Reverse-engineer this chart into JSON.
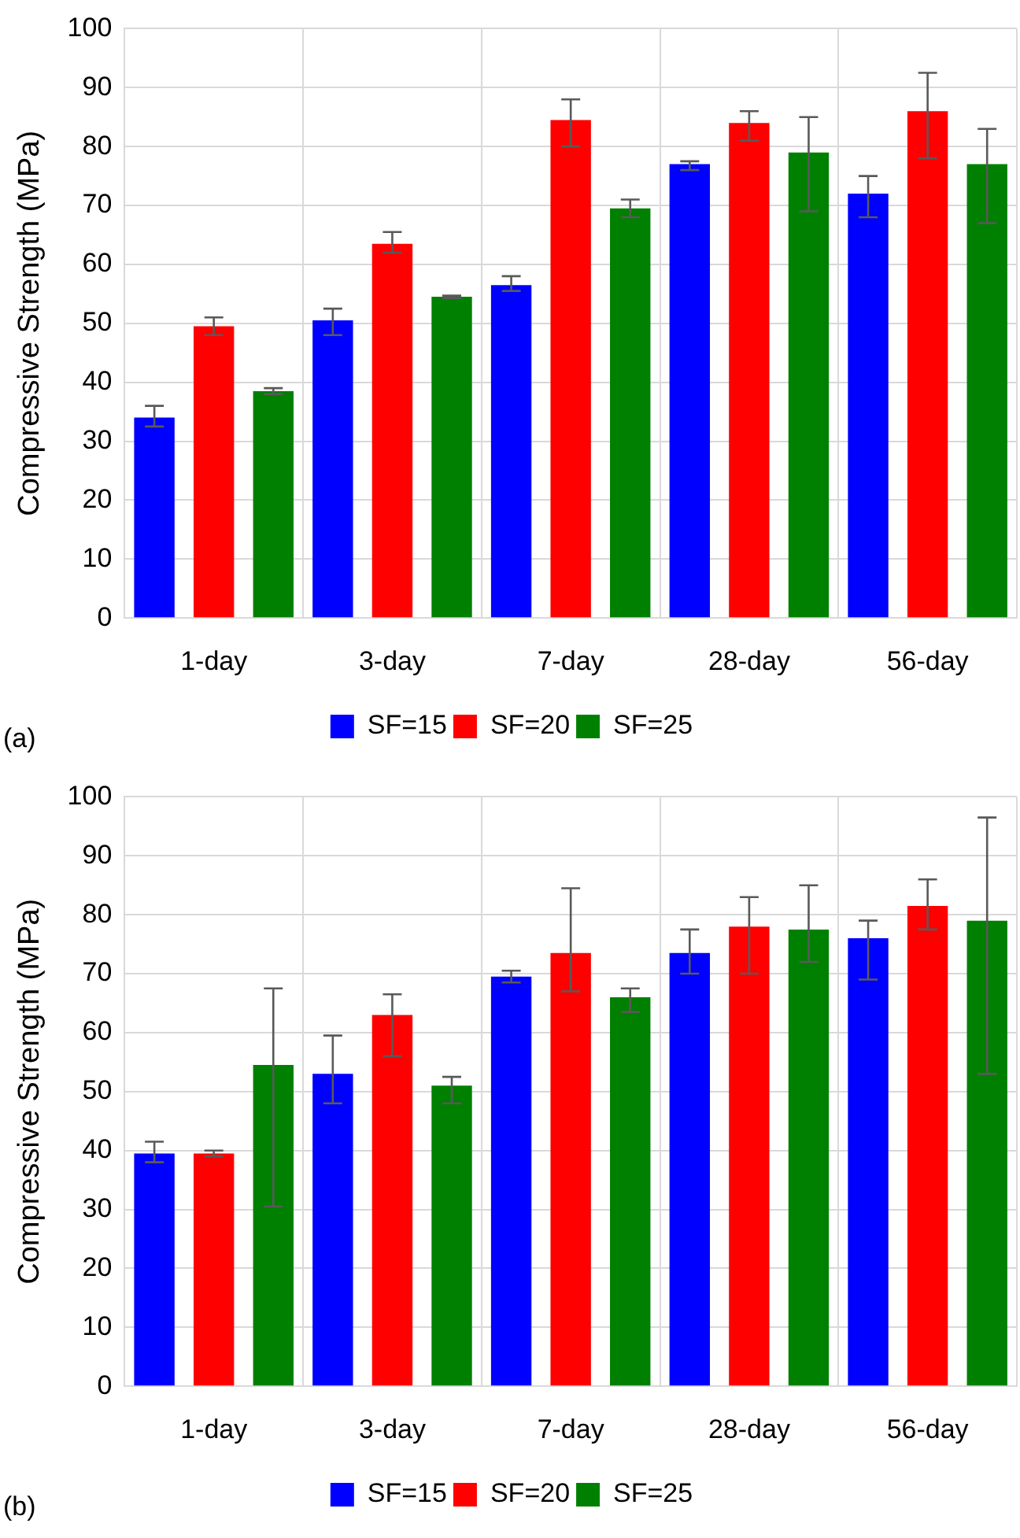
{
  "chart_data": [
    {
      "type": "bar",
      "ylabel": "Compressive Strength (MPa)",
      "categories": [
        "1-day",
        "3-day",
        "7-day",
        "28-day",
        "56-day"
      ],
      "ylim": [
        0,
        100
      ],
      "yticks": [
        0,
        10,
        20,
        30,
        40,
        50,
        60,
        70,
        80,
        90,
        100
      ],
      "grid": true,
      "legend": "bottom",
      "annotations": [
        "(a)"
      ],
      "series": [
        {
          "name": "SF=15",
          "color": "#0000ff",
          "values": [
            34,
            50.5,
            56.5,
            77,
            72
          ],
          "errors": [
            [
              32.5,
              36
            ],
            [
              48,
              52.5
            ],
            [
              55.5,
              58
            ],
            [
              76,
              77.5
            ],
            [
              68,
              75
            ]
          ]
        },
        {
          "name": "SF=20",
          "color": "#ff0000",
          "values": [
            49.5,
            63.5,
            84.5,
            84,
            86
          ],
          "errors": [
            [
              48,
              51
            ],
            [
              62,
              65.5
            ],
            [
              80,
              88
            ],
            [
              81,
              86
            ],
            [
              78,
              92.5
            ]
          ]
        },
        {
          "name": "SF=25",
          "color": "#008000",
          "values": [
            38.5,
            54.5,
            69.5,
            79,
            77
          ],
          "errors": [
            [
              38,
              39
            ],
            [
              54.3,
              54.7
            ],
            [
              68,
              71
            ],
            [
              69,
              85
            ],
            [
              67,
              83
            ]
          ]
        }
      ]
    },
    {
      "type": "bar",
      "ylabel": "Compressive Strength (MPa)",
      "categories": [
        "1-day",
        "3-day",
        "7-day",
        "28-day",
        "56-day"
      ],
      "ylim": [
        0,
        100
      ],
      "yticks": [
        0,
        10,
        20,
        30,
        40,
        50,
        60,
        70,
        80,
        90,
        100
      ],
      "grid": true,
      "legend": "bottom",
      "annotations": [
        "(b)"
      ],
      "series": [
        {
          "name": "SF=15",
          "color": "#0000ff",
          "values": [
            39.5,
            53,
            69.5,
            73.5,
            76
          ],
          "errors": [
            [
              38,
              41.5
            ],
            [
              48,
              59.5
            ],
            [
              68.5,
              70.5
            ],
            [
              70,
              77.5
            ],
            [
              69,
              79
            ]
          ]
        },
        {
          "name": "SF=20",
          "color": "#ff0000",
          "values": [
            39.5,
            63,
            73.5,
            78,
            81.5
          ],
          "errors": [
            [
              39,
              40
            ],
            [
              56,
              66.5
            ],
            [
              67,
              84.5
            ],
            [
              70,
              83
            ],
            [
              77.5,
              86
            ]
          ]
        },
        {
          "name": "SF=25",
          "color": "#008000",
          "values": [
            54.5,
            51,
            66,
            77.5,
            79
          ],
          "errors": [
            [
              30.5,
              67.5
            ],
            [
              48,
              52.5
            ],
            [
              63.5,
              67.5
            ],
            [
              72,
              85
            ],
            [
              53,
              96.5
            ]
          ]
        }
      ]
    }
  ]
}
